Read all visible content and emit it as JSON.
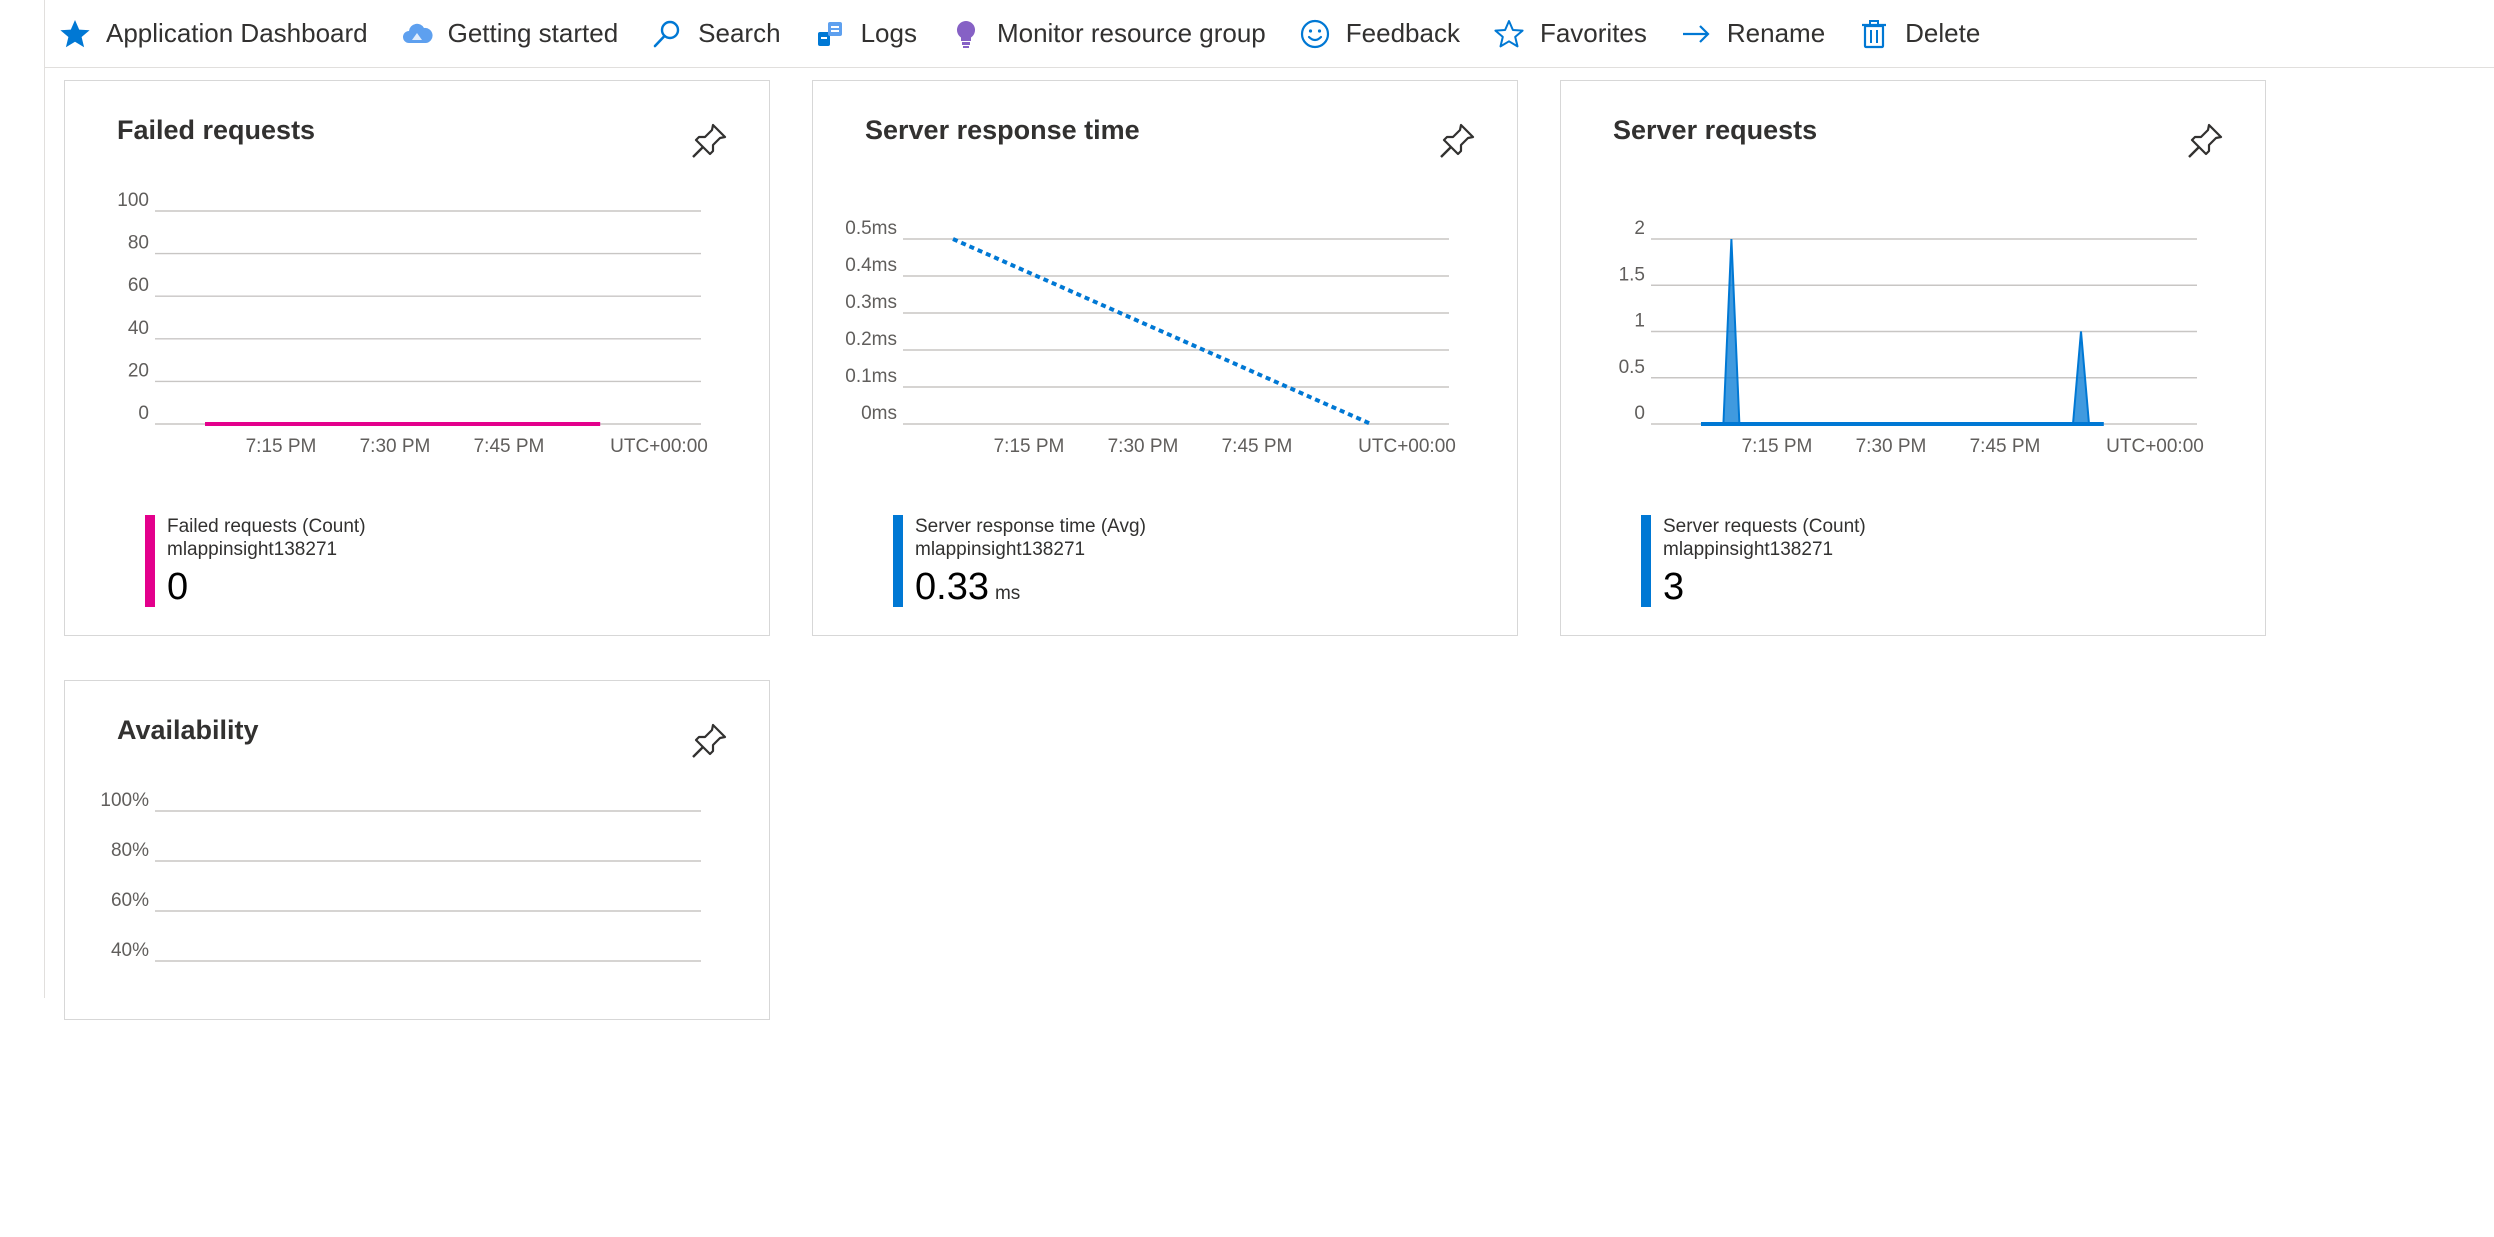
{
  "toolbar": {
    "items": [
      {
        "label": "Application Dashboard",
        "icon": "star-filled-icon"
      },
      {
        "label": "Getting started",
        "icon": "cloud-icon"
      },
      {
        "label": "Search",
        "icon": "search-icon"
      },
      {
        "label": "Logs",
        "icon": "logs-icon"
      },
      {
        "label": "Monitor resource group",
        "icon": "bulb-icon"
      },
      {
        "label": "Feedback",
        "icon": "smiley-icon"
      },
      {
        "label": "Favorites",
        "icon": "star-outline-icon"
      },
      {
        "label": "Rename",
        "icon": "arrow-right-icon"
      },
      {
        "label": "Delete",
        "icon": "trash-icon"
      }
    ]
  },
  "colors": {
    "failed": "#e3008c",
    "blue": "#0078d4",
    "grid": "#c8c6c4",
    "text": "#323130"
  },
  "tiles": [
    {
      "title": "Failed requests",
      "legend_name": "Failed requests (Count)",
      "legend_resource": "mlappinsight138271",
      "legend_value": "0",
      "legend_unit": ""
    },
    {
      "title": "Server response time",
      "legend_name": "Server response time (Avg)",
      "legend_resource": "mlappinsight138271",
      "legend_value": "0.33",
      "legend_unit": "ms"
    },
    {
      "title": "Server requests",
      "legend_name": "Server requests (Count)",
      "legend_resource": "mlappinsight138271",
      "legend_value": "3",
      "legend_unit": ""
    },
    {
      "title": "Availability"
    }
  ],
  "chart_data": [
    {
      "type": "line",
      "title": "Failed requests",
      "y_ticks": [
        "100",
        "80",
        "60",
        "40",
        "20",
        "0"
      ],
      "ylim": [
        0,
        100
      ],
      "x_ticks": [
        "7:15 PM",
        "7:30 PM",
        "7:45 PM",
        "UTC+00:00"
      ],
      "series": [
        {
          "name": "Failed requests (Count)",
          "x": [
            "7:05 PM",
            "7:57 PM"
          ],
          "values": [
            0,
            0
          ]
        }
      ]
    },
    {
      "type": "line",
      "title": "Server response time",
      "y_ticks": [
        "0.5ms",
        "0.4ms",
        "0.3ms",
        "0.2ms",
        "0.1ms",
        "0ms"
      ],
      "ylim": [
        0,
        0.5
      ],
      "x_ticks": [
        "7:15 PM",
        "7:30 PM",
        "7:45 PM",
        "UTC+00:00"
      ],
      "series": [
        {
          "name": "Server response time (Avg)",
          "x": [
            "7:05 PM",
            "8:00 PM"
          ],
          "values": [
            0.5,
            0
          ],
          "dashed": true
        }
      ]
    },
    {
      "type": "area",
      "title": "Server requests",
      "y_ticks": [
        "2",
        "1.5",
        "1",
        "0.5",
        "0"
      ],
      "ylim": [
        0,
        2
      ],
      "x_ticks": [
        "7:15 PM",
        "7:30 PM",
        "7:45 PM",
        "UTC+00:00"
      ],
      "series": [
        {
          "name": "Server requests (Count)",
          "x": [
            "7:09 PM",
            "7:55 PM"
          ],
          "values": [
            2,
            1
          ]
        }
      ]
    },
    {
      "type": "line",
      "title": "Availability",
      "y_ticks": [
        "100%",
        "80%",
        "60%",
        "40%"
      ],
      "ylim": [
        0,
        100
      ]
    }
  ]
}
